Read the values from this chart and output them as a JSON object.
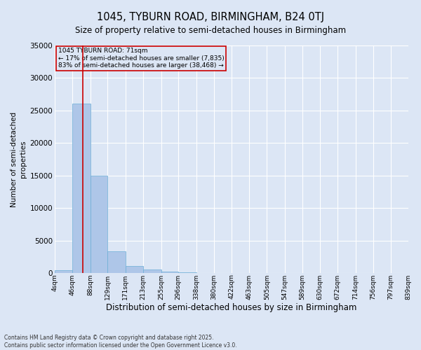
{
  "title1": "1045, TYBURN ROAD, BIRMINGHAM, B24 0TJ",
  "title2": "Size of property relative to semi-detached houses in Birmingham",
  "xlabel": "Distribution of semi-detached houses by size in Birmingham",
  "ylabel": "Number of semi-detached\nproperties",
  "bin_edges": [
    4,
    46,
    88,
    129,
    171,
    213,
    255,
    296,
    338,
    380,
    422,
    463,
    505,
    547,
    589,
    630,
    672,
    714,
    756,
    797,
    839
  ],
  "bin_labels": [
    "4sqm",
    "46sqm",
    "88sqm",
    "129sqm",
    "171sqm",
    "213sqm",
    "255sqm",
    "296sqm",
    "338sqm",
    "380sqm",
    "422sqm",
    "463sqm",
    "505sqm",
    "547sqm",
    "589sqm",
    "630sqm",
    "672sqm",
    "714sqm",
    "756sqm",
    "797sqm",
    "839sqm"
  ],
  "bar_heights": [
    400,
    26100,
    15000,
    3300,
    1100,
    500,
    180,
    100,
    30,
    10,
    5,
    2,
    1,
    0,
    0,
    0,
    0,
    0,
    0,
    0
  ],
  "bar_color": "#aec6e8",
  "bar_edgecolor": "#6baed6",
  "property_size": 71,
  "vline_color": "#cc0000",
  "annotation_title": "1045 TYBURN ROAD: 71sqm",
  "annotation_line1": "← 17% of semi-detached houses are smaller (7,835)",
  "annotation_line2": "83% of semi-detached houses are larger (38,468) →",
  "annotation_box_edgecolor": "#cc0000",
  "ylim": [
    0,
    35000
  ],
  "yticks": [
    0,
    5000,
    10000,
    15000,
    20000,
    25000,
    30000,
    35000
  ],
  "background_color": "#dce6f5",
  "grid_color": "#ffffff",
  "footer1": "Contains HM Land Registry data © Crown copyright and database right 2025.",
  "footer2": "Contains public sector information licensed under the Open Government Licence v3.0."
}
